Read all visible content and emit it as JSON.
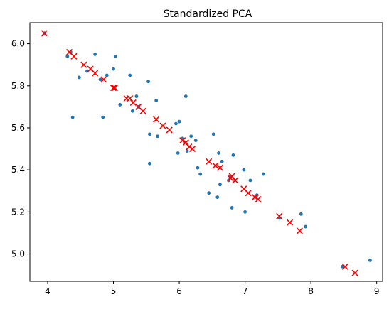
{
  "chart_data": {
    "type": "scatter",
    "title": "Standardized PCA",
    "xlabel": "",
    "ylabel": "",
    "xlim": [
      3.73,
      9.09
    ],
    "ylim": [
      4.87,
      6.1
    ],
    "xticks": [
      "4",
      "5",
      "6",
      "7",
      "8",
      "9"
    ],
    "yticks": [
      "5.0",
      "5.2",
      "5.4",
      "5.6",
      "5.8",
      "6.0"
    ],
    "grid": false,
    "legend": "none",
    "series": [
      {
        "marker": "dot",
        "color": "#1f77b4",
        "points": [
          [
            3.95,
            6.05
          ],
          [
            4.3,
            5.94
          ],
          [
            4.35,
            5.96
          ],
          [
            4.38,
            5.65
          ],
          [
            4.48,
            5.84
          ],
          [
            4.6,
            5.87
          ],
          [
            4.72,
            5.95
          ],
          [
            4.8,
            5.83
          ],
          [
            4.84,
            5.65
          ],
          [
            4.9,
            5.85
          ],
          [
            5.0,
            5.88
          ],
          [
            5.03,
            5.94
          ],
          [
            5.1,
            5.71
          ],
          [
            5.25,
            5.85
          ],
          [
            5.29,
            5.68
          ],
          [
            5.35,
            5.75
          ],
          [
            5.38,
            5.7
          ],
          [
            5.53,
            5.82
          ],
          [
            5.55,
            5.57
          ],
          [
            5.55,
            5.43
          ],
          [
            5.65,
            5.73
          ],
          [
            5.67,
            5.56
          ],
          [
            5.95,
            5.62
          ],
          [
            5.98,
            5.48
          ],
          [
            6.0,
            5.63
          ],
          [
            6.05,
            5.55
          ],
          [
            6.1,
            5.75
          ],
          [
            6.12,
            5.49
          ],
          [
            6.18,
            5.56
          ],
          [
            6.25,
            5.54
          ],
          [
            6.28,
            5.41
          ],
          [
            6.32,
            5.38
          ],
          [
            6.45,
            5.29
          ],
          [
            6.52,
            5.57
          ],
          [
            6.58,
            5.27
          ],
          [
            6.6,
            5.48
          ],
          [
            6.62,
            5.33
          ],
          [
            6.65,
            5.44
          ],
          [
            6.75,
            5.35
          ],
          [
            6.78,
            5.37
          ],
          [
            6.8,
            5.22
          ],
          [
            6.82,
            5.47
          ],
          [
            6.98,
            5.4
          ],
          [
            7.0,
            5.2
          ],
          [
            7.08,
            5.35
          ],
          [
            7.18,
            5.28
          ],
          [
            7.28,
            5.38
          ],
          [
            7.52,
            5.17
          ],
          [
            7.85,
            5.19
          ],
          [
            7.92,
            5.13
          ],
          [
            8.48,
            4.94
          ],
          [
            8.9,
            4.97
          ]
        ]
      },
      {
        "marker": "x",
        "color": "#ff0000",
        "points": [
          [
            3.95,
            6.05
          ],
          [
            4.33,
            5.96
          ],
          [
            4.4,
            5.94
          ],
          [
            4.55,
            5.9
          ],
          [
            4.65,
            5.88
          ],
          [
            4.72,
            5.86
          ],
          [
            4.85,
            5.83
          ],
          [
            5.0,
            5.79
          ],
          [
            5.02,
            5.79
          ],
          [
            5.2,
            5.74
          ],
          [
            5.25,
            5.74
          ],
          [
            5.3,
            5.72
          ],
          [
            5.38,
            5.7
          ],
          [
            5.45,
            5.68
          ],
          [
            5.65,
            5.64
          ],
          [
            5.75,
            5.61
          ],
          [
            5.85,
            5.59
          ],
          [
            6.05,
            5.54
          ],
          [
            6.1,
            5.53
          ],
          [
            6.15,
            5.51
          ],
          [
            6.2,
            5.5
          ],
          [
            6.45,
            5.44
          ],
          [
            6.55,
            5.42
          ],
          [
            6.62,
            5.41
          ],
          [
            6.78,
            5.36
          ],
          [
            6.8,
            5.37
          ],
          [
            6.85,
            5.35
          ],
          [
            6.98,
            5.31
          ],
          [
            7.05,
            5.29
          ],
          [
            7.15,
            5.27
          ],
          [
            7.2,
            5.26
          ],
          [
            7.52,
            5.18
          ],
          [
            7.68,
            5.15
          ],
          [
            7.83,
            5.11
          ],
          [
            8.52,
            4.94
          ],
          [
            8.67,
            4.91
          ]
        ]
      }
    ]
  }
}
